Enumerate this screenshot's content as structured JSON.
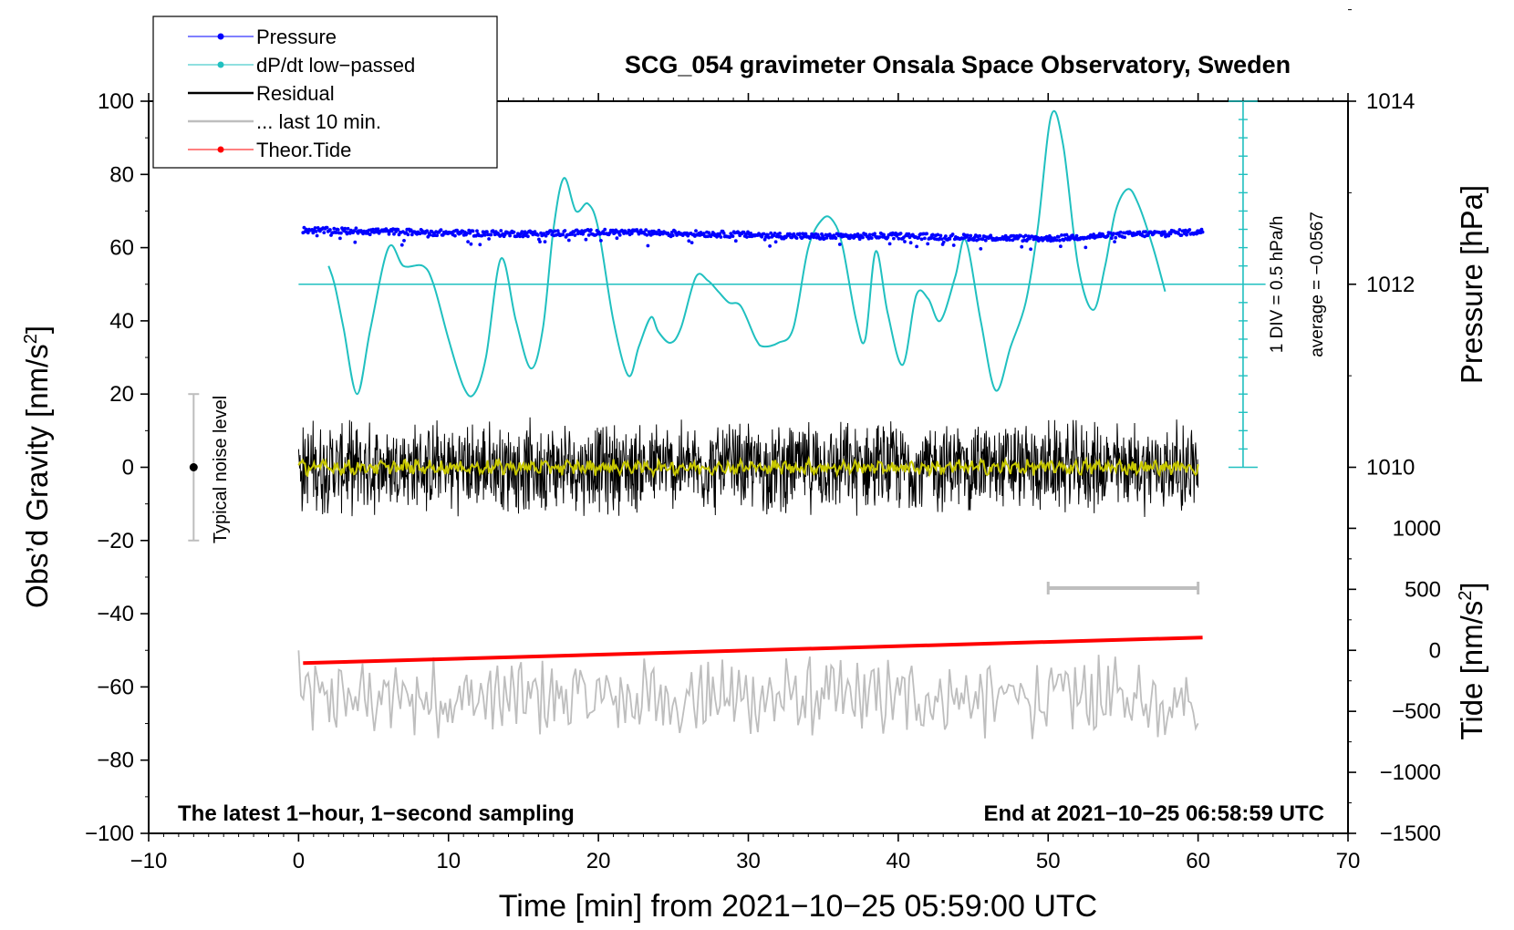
{
  "chart_data": {
    "type": "line",
    "title": "SCG_054 gravimeter Onsala Space Observatory, Sweden",
    "xlabel": "Time [min] from 2021−10−25 05:59:00 UTC",
    "ylabel_left": "Obs’d Gravity [nm/s",
    "ylabel_left_sup": "2",
    "ylabel_left_end": "]",
    "ylabel_pressure": "Pressure [hPa]",
    "ylabel_tide": "Tide [nm/s",
    "ylabel_tide_sup": "2",
    "ylabel_tide_end": "]",
    "xlim": [
      -10,
      70
    ],
    "ylim": [
      -100,
      100
    ],
    "x_ticks": [
      -10,
      0,
      10,
      20,
      30,
      40,
      50,
      60,
      70
    ],
    "x_tick_labels": [
      "−10",
      "0",
      "10",
      "20",
      "30",
      "40",
      "50",
      "60",
      "70"
    ],
    "y_ticks": [
      100,
      80,
      60,
      40,
      20,
      0,
      -20,
      -40,
      -60,
      -80,
      -100
    ],
    "y_tick_labels": [
      "100",
      "80",
      "60",
      "40",
      "20",
      "0",
      "−20",
      "−40",
      "−60",
      "−80",
      "−100"
    ],
    "pressure_axis": {
      "ticks": [
        1014,
        1012,
        1010
      ],
      "labels": [
        "1014",
        "1012",
        "1010"
      ],
      "left_y_at_1012": 50,
      "left_units_per_hpa": 25
    },
    "tide_axis": {
      "ticks": [
        1000,
        500,
        0,
        -500,
        -1000,
        -1500
      ],
      "labels": [
        "1000",
        "500",
        "0",
        "−500",
        "−1000",
        "−1500"
      ],
      "left_y_at_zero": -50,
      "left_units_per_nms2": 0.03333
    },
    "legend": {
      "position": "top-left",
      "entries": [
        {
          "label": "Pressure",
          "color": "#0000ff",
          "marker": true
        },
        {
          "label": "dP/dt low−passed",
          "color": "#00c8c8",
          "marker": true
        },
        {
          "label": "Residual",
          "color": "#000000",
          "marker": false
        },
        {
          "label": "... last 10 min.",
          "color": "#bebebe",
          "marker": false
        },
        {
          "label": "Theor.Tide",
          "color": "#ff0000",
          "marker": true
        }
      ]
    },
    "annotations": {
      "left": "The latest 1−hour, 1−second sampling",
      "right": "End at 2021−10−25 06:58:59 UTC",
      "noise": "Typical noise level",
      "div": "1 DIV = 0.5 hPa/h",
      "average": "average = −0.0567"
    },
    "noise_bar": {
      "x": -7,
      "center": 0,
      "half_range": 20
    },
    "last10_bar": {
      "x_start": 50,
      "x_end": 60
    },
    "dpdt_axis": {
      "x": 63,
      "y_top": 100,
      "y_bottom": 0,
      "div": 5
    },
    "dpdt_baseline": 50,
    "series": [
      {
        "name": "Pressure",
        "color": "#0000ff",
        "x_start": 0.3,
        "x_end": 60.3,
        "x": [
          0,
          5,
          10,
          15,
          20,
          25,
          30,
          35,
          40,
          45,
          50,
          55,
          60
        ],
        "y": [
          64.8,
          64.5,
          64.0,
          63.8,
          64.2,
          64.0,
          63.5,
          63.0,
          63.2,
          62.8,
          62.5,
          63.5,
          64.3
        ]
      },
      {
        "name": "dP/dt low-passed",
        "color": "#00c8c8",
        "x": [
          2,
          2.4,
          3,
          3.9,
          4.8,
          6,
          7,
          8.3,
          9,
          10,
          11,
          11.7,
          12.5,
          13.5,
          14.5,
          15.5,
          16.3,
          17,
          17.7,
          18.5,
          19.3,
          20,
          21,
          22,
          22.7,
          23.5,
          24,
          24.8,
          25.5,
          26.5,
          27.3,
          28,
          28.7,
          29.5,
          30.5,
          31,
          32,
          33,
          34,
          35,
          35.7,
          36.3,
          37.2,
          37.8,
          38.5,
          39.3,
          40.3,
          41.2,
          42,
          42.8,
          43.8,
          44.5,
          45.5,
          46.5,
          47.5,
          48.5,
          49.3,
          50.2,
          51,
          52,
          53,
          53.8,
          54.5,
          55.3,
          56,
          57,
          57.8
        ],
        "y": [
          55,
          50,
          38,
          20,
          38,
          60,
          55,
          55,
          50,
          35,
          22,
          20,
          30,
          57,
          40,
          27,
          38,
          65,
          79,
          70,
          72,
          65,
          40,
          25,
          33,
          41,
          37,
          34,
          38,
          52,
          51,
          48,
          45,
          44,
          35,
          33,
          34,
          38,
          60,
          68,
          67,
          60,
          40,
          35,
          59,
          42,
          28,
          47,
          46,
          40,
          52,
          62,
          40,
          21,
          33,
          45,
          65,
          96,
          88,
          55,
          43,
          55,
          70,
          76,
          72,
          60,
          48
        ]
      },
      {
        "name": "Residual",
        "color": "#000000",
        "x_start": 0,
        "x_end": 60,
        "amplitude": 10,
        "center": 0
      },
      {
        "name": "Residual smoothed",
        "color": "#c8c800",
        "x_start": 0,
        "x_end": 60,
        "center": 0
      },
      {
        "name": "... last 10 min.",
        "color": "#bebebe",
        "x_start": 0,
        "x_end": 60,
        "center": -63,
        "amplitude": 8
      },
      {
        "name": "Theor.Tide",
        "color": "#ff0000",
        "x": [
          0.3,
          60.3
        ],
        "y": [
          -53.5,
          -46.5
        ]
      }
    ]
  }
}
